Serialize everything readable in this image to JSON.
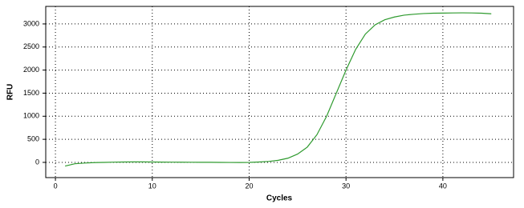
{
  "chart_data": {
    "type": "line",
    "x_label": "Cycles",
    "y_label": "RFU",
    "x": [
      1,
      2,
      3,
      4,
      5,
      6,
      7,
      8,
      9,
      10,
      11,
      12,
      13,
      14,
      15,
      16,
      17,
      18,
      19,
      20,
      21,
      22,
      23,
      24,
      25,
      26,
      27,
      28,
      29,
      30,
      31,
      32,
      33,
      34,
      35,
      36,
      37,
      38,
      39,
      40,
      41,
      42,
      43,
      44,
      45
    ],
    "series": [
      {
        "color": "#2e9a2e",
        "values": [
          -80,
          -30,
          -15,
          -5,
          0,
          5,
          8,
          10,
          10,
          8,
          6,
          5,
          4,
          3,
          2,
          1,
          0,
          -2,
          -3,
          0,
          8,
          20,
          45,
          90,
          180,
          330,
          600,
          1000,
          1500,
          2000,
          2450,
          2780,
          2980,
          3090,
          3150,
          3190,
          3210,
          3225,
          3232,
          3235,
          3238,
          3240,
          3238,
          3232,
          3220
        ]
      }
    ],
    "xlim": [
      -1,
      47.3
    ],
    "xticks": [
      0,
      10,
      20,
      30,
      40
    ],
    "ylim": [
      -330,
      3380
    ],
    "yticks": [
      0,
      500,
      1000,
      1500,
      2000,
      2500,
      3000
    ],
    "grid": true
  }
}
